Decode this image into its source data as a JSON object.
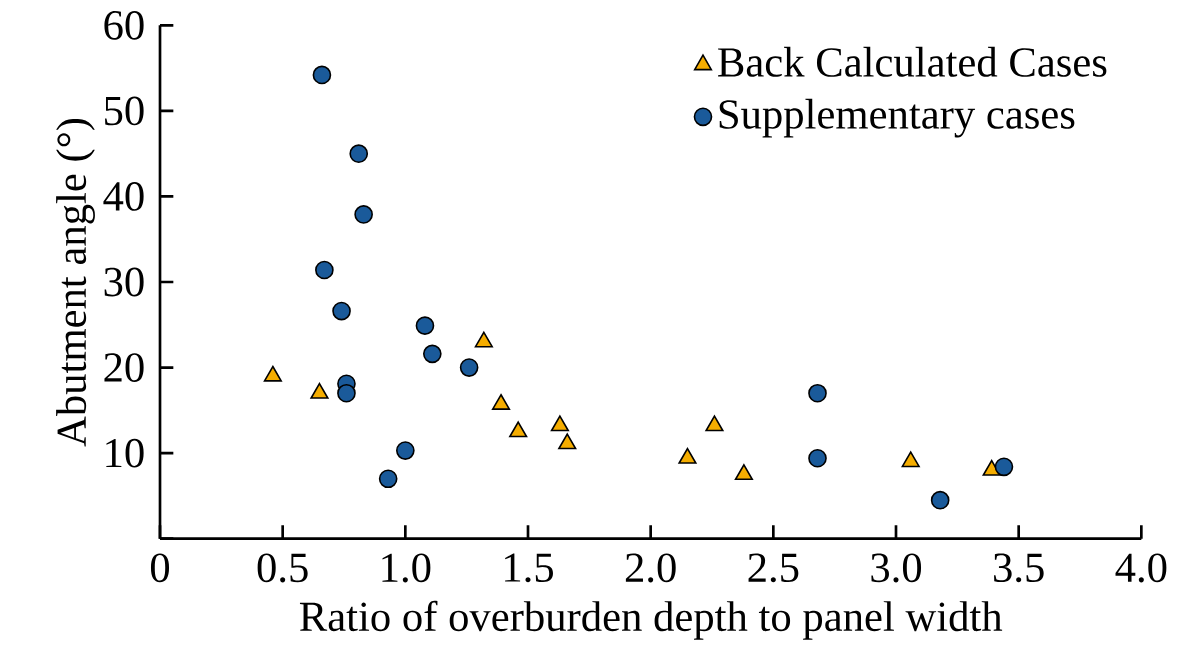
{
  "chart_data": {
    "type": "scatter",
    "xlabel": "Ratio of overburden depth to panel width",
    "ylabel": "Abutment angle (°)",
    "xlim": [
      0,
      4
    ],
    "ylim": [
      0,
      60
    ],
    "xticks": [
      0,
      {
        "value": 0.5,
        "label": "0.5"
      },
      {
        "value": 1,
        "label": "1.0"
      },
      {
        "value": 1.5,
        "label": "1.5"
      },
      {
        "value": 2,
        "label": "2.0"
      },
      {
        "value": 2.5,
        "label": "2.5"
      },
      {
        "value": 3,
        "label": "3.0"
      },
      {
        "value": 3.5,
        "label": "3.5"
      },
      {
        "value": 4,
        "label": "4.0"
      }
    ],
    "yticks": [
      {
        "value": 0,
        "label": null
      },
      10,
      20,
      30,
      40,
      50,
      60
    ],
    "legend": "top right",
    "grid": false,
    "series": [
      {
        "name": "Back Calculated Cases",
        "color": "#f5ad00",
        "marker": "triangle",
        "x": [
          0.46,
          0.65,
          1.32,
          1.39,
          1.46,
          1.63,
          1.66,
          2.15,
          2.26,
          2.38,
          3.06,
          3.39
        ],
        "values": [
          19,
          17,
          23,
          15.7,
          12.5,
          13.2,
          11.1,
          9.4,
          13.2,
          7.5,
          9,
          8
        ]
      },
      {
        "name": "Supplementary cases",
        "color": "#1a5a9a",
        "marker": "circle",
        "x": [
          0.66,
          0.81,
          0.83,
          0.67,
          0.74,
          0.76,
          0.76,
          1.08,
          1.11,
          1.26,
          1.0,
          0.93,
          2.68,
          2.68,
          3.18,
          3.44
        ],
        "values": [
          54.2,
          45,
          37.9,
          31.4,
          26.6,
          18.1,
          17,
          24.9,
          21.6,
          20,
          10.3,
          7,
          17,
          9.4,
          4.5,
          8.4
        ]
      }
    ]
  }
}
